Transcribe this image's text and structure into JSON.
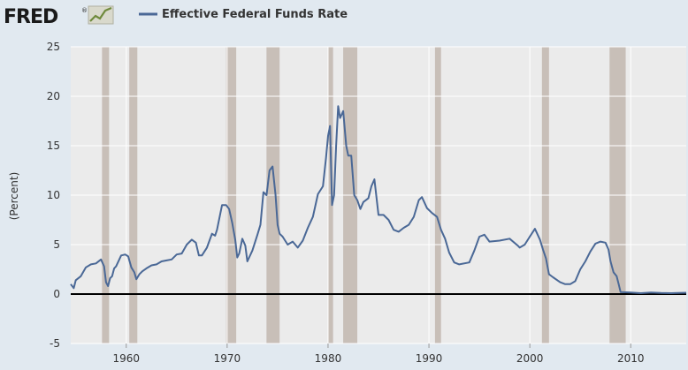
{
  "header": {
    "logo_text": "FRED",
    "logo_mark": "®"
  },
  "colors": {
    "page_bg": "#e1e9f0",
    "plot_bg": "#ebebeb",
    "recession": "#c8bfb8",
    "series": "#4a6896",
    "zero_line": "#000000",
    "grid": "#ffffff"
  },
  "chart_data": {
    "type": "line",
    "title": "",
    "xlabel": "",
    "ylabel": "(Percent)",
    "xlim": [
      1954.5,
      2015.5
    ],
    "ylim": [
      -5,
      25
    ],
    "x_ticks": [
      1960,
      1970,
      1980,
      1990,
      2000,
      2010
    ],
    "y_ticks": [
      -5,
      0,
      5,
      10,
      15,
      20,
      25
    ],
    "grid": true,
    "legend_position": "top",
    "zero_line": true,
    "recessions": [
      [
        1957.6,
        1958.3
      ],
      [
        1960.3,
        1961.1
      ],
      [
        1969.9,
        1970.9
      ],
      [
        1973.9,
        1975.2
      ],
      [
        1980.0,
        1980.5
      ],
      [
        1981.5,
        1982.9
      ],
      [
        1990.6,
        1991.2
      ],
      [
        2001.2,
        2001.9
      ],
      [
        2007.9,
        2009.5
      ]
    ],
    "series": [
      {
        "name": "Effective Federal Funds Rate",
        "x": [
          1954.5,
          1954.8,
          1955.0,
          1955.5,
          1956.0,
          1956.5,
          1957.0,
          1957.5,
          1957.8,
          1958.0,
          1958.2,
          1958.4,
          1958.6,
          1958.8,
          1959.0,
          1959.5,
          1959.9,
          1960.2,
          1960.5,
          1960.8,
          1961.0,
          1961.3,
          1961.6,
          1962.0,
          1962.5,
          1963.0,
          1963.5,
          1964.0,
          1964.5,
          1965.0,
          1965.5,
          1966.0,
          1966.5,
          1966.9,
          1967.2,
          1967.5,
          1968.0,
          1968.5,
          1968.8,
          1969.0,
          1969.5,
          1969.9,
          1970.2,
          1970.5,
          1970.8,
          1971.0,
          1971.2,
          1971.5,
          1971.8,
          1972.0,
          1972.5,
          1973.0,
          1973.3,
          1973.6,
          1973.9,
          1974.2,
          1974.5,
          1974.8,
          1975.0,
          1975.2,
          1975.5,
          1976.0,
          1976.5,
          1977.0,
          1977.5,
          1978.0,
          1978.5,
          1979.0,
          1979.5,
          1979.8,
          1980.0,
          1980.2,
          1980.4,
          1980.6,
          1980.8,
          1981.0,
          1981.2,
          1981.5,
          1981.8,
          1982.0,
          1982.3,
          1982.6,
          1982.9,
          1983.2,
          1983.5,
          1984.0,
          1984.3,
          1984.6,
          1985.0,
          1985.5,
          1986.0,
          1986.5,
          1987.0,
          1987.5,
          1988.0,
          1988.5,
          1989.0,
          1989.3,
          1989.8,
          1990.3,
          1990.8,
          1991.2,
          1991.6,
          1992.0,
          1992.5,
          1993.0,
          1994.0,
          1994.5,
          1995.0,
          1995.5,
          1996.0,
          1997.0,
          1998.0,
          1998.8,
          1999.0,
          1999.5,
          2000.0,
          2000.5,
          2001.0,
          2001.3,
          2001.6,
          2001.9,
          2002.3,
          2003.0,
          2003.5,
          2004.0,
          2004.5,
          2005.0,
          2005.5,
          2006.0,
          2006.5,
          2007.0,
          2007.5,
          2007.8,
          2008.0,
          2008.3,
          2008.6,
          2008.8,
          2009.0,
          2010.0,
          2011.0,
          2012.0,
          2013.0,
          2014.0,
          2015.5
        ],
        "values": [
          1.0,
          0.6,
          1.4,
          1.8,
          2.7,
          3.0,
          3.1,
          3.5,
          2.8,
          1.2,
          0.8,
          1.6,
          1.8,
          2.6,
          2.8,
          3.9,
          4.0,
          3.8,
          2.7,
          2.2,
          1.5,
          2.0,
          2.3,
          2.6,
          2.9,
          3.0,
          3.3,
          3.4,
          3.5,
          4.0,
          4.1,
          5.0,
          5.5,
          5.2,
          3.9,
          3.9,
          4.7,
          6.1,
          5.9,
          6.5,
          9.0,
          9.0,
          8.6,
          7.2,
          5.5,
          3.7,
          4.1,
          5.6,
          4.9,
          3.3,
          4.4,
          6.0,
          7.0,
          10.3,
          10.0,
          12.5,
          12.9,
          10.0,
          7.0,
          6.1,
          5.8,
          5.0,
          5.3,
          4.7,
          5.4,
          6.7,
          7.8,
          10.1,
          10.9,
          13.8,
          16.0,
          17.0,
          9.0,
          10.0,
          15.0,
          19.0,
          17.8,
          18.5,
          15.0,
          14.0,
          14.0,
          10.0,
          9.5,
          8.6,
          9.3,
          9.7,
          10.9,
          11.6,
          8.0,
          8.0,
          7.5,
          6.5,
          6.3,
          6.7,
          7.0,
          7.8,
          9.5,
          9.8,
          8.7,
          8.2,
          7.8,
          6.5,
          5.6,
          4.2,
          3.2,
          3.0,
          3.2,
          4.4,
          5.8,
          6.0,
          5.3,
          5.4,
          5.6,
          4.9,
          4.7,
          5.0,
          5.8,
          6.6,
          5.5,
          4.5,
          3.6,
          2.0,
          1.7,
          1.2,
          1.0,
          1.0,
          1.3,
          2.5,
          3.3,
          4.3,
          5.1,
          5.3,
          5.2,
          4.5,
          3.3,
          2.2,
          1.8,
          1.0,
          0.2,
          0.15,
          0.09,
          0.15,
          0.11,
          0.09,
          0.13
        ]
      }
    ]
  }
}
